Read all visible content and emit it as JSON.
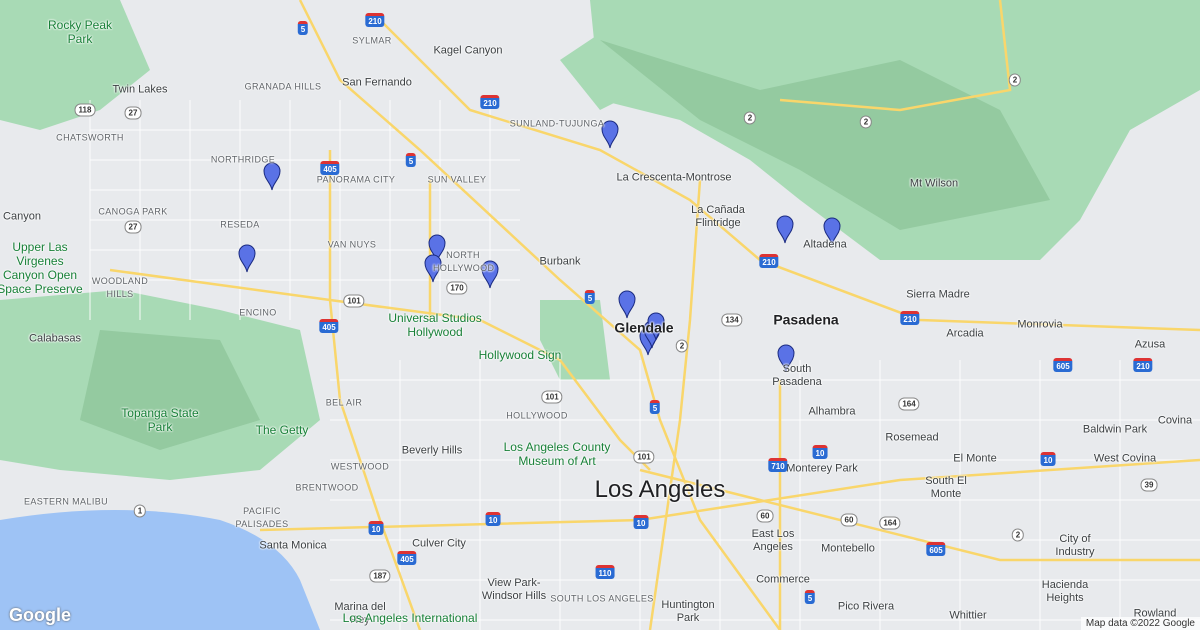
{
  "places": [
    "Rocky Peak Park",
    "SYLMAR",
    "Kagel Canyon",
    "Twin Lakes",
    "GRANADA HILLS",
    "San Fernando",
    "CHATSWORTH",
    "SUNLAND-TUJUNGA",
    "NORTHRIDGE",
    "PANORAMA CITY",
    "SUN VALLEY",
    "La Crescenta-Montrose",
    "Mt Wilson",
    "CANOGA PARK",
    "RESEDA",
    "La Cañada Flintridge",
    "Canyon",
    "Upper Las Virgenes Canyon Open Space Preserve",
    "VAN NUYS",
    "NORTH HOLLYWOOD",
    "Burbank",
    "Altadena",
    "WOODLAND HILLS",
    "Sierra Madre",
    "ENCINO",
    "Universal Studios Hollywood",
    "Glendale",
    "Pasadena",
    "Arcadia",
    "Monrovia",
    "Calabasas",
    "Hollywood Sign",
    "Azusa",
    "South Pasadena",
    "BEL AIR",
    "HOLLYWOOD",
    "Alhambra",
    "Topanga State Park",
    "The Getty",
    "Baldwin Park",
    "Covina",
    "Beverly Hills",
    "Los Angeles County Museum of Art",
    "Rosemead",
    "El Monte",
    "West Covina",
    "WESTWOOD",
    "Monterey Park",
    "Los Angeles",
    "BRENTWOOD",
    "South El Monte",
    "EASTERN MALIBU",
    "PACIFIC PALISADES",
    "City of Industry",
    "Santa Monica",
    "Culver City",
    "East Los Angeles",
    "Montebello",
    "View Park-Windsor Hills",
    "Commerce",
    "Hacienda Heights",
    "SOUTH LOS ANGELES",
    "Huntington Park",
    "Pico Rivera",
    "Marina del Rey",
    "Los Angeles International",
    "Whittier",
    "Rowland"
  ],
  "highway_shields": [
    "5",
    "210",
    "210",
    "118",
    "27",
    "405",
    "5",
    "2",
    "2",
    "2",
    "27",
    "210",
    "101",
    "170",
    "5",
    "134",
    "2",
    "210",
    "101",
    "405",
    "164",
    "605",
    "210",
    "101",
    "10",
    "10",
    "710",
    "10",
    "10",
    "60",
    "164",
    "605",
    "1",
    "10",
    "405",
    "187",
    "110",
    "5",
    "39",
    "5",
    "60",
    "2"
  ],
  "logo": "Google",
  "attribution": "Map data ©2022 Google"
}
